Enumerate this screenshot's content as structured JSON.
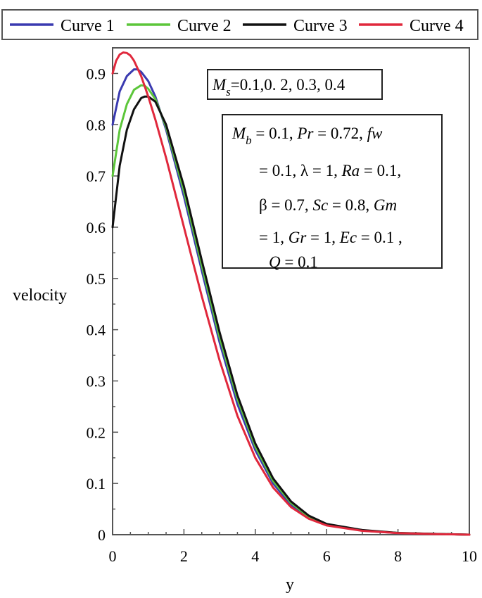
{
  "chart_data": {
    "type": "line",
    "xlabel": "y",
    "ylabel": "velocity",
    "xlim": [
      0,
      10
    ],
    "ylim": [
      0,
      0.95
    ],
    "xticks": [
      0,
      2,
      4,
      6,
      8,
      10
    ],
    "yticks": [
      0,
      0.1,
      0.2,
      0.3,
      0.4,
      0.5,
      0.6,
      0.7,
      0.8,
      0.9
    ],
    "xtick_labels": [
      "0",
      "2",
      "4",
      "6",
      "8",
      "10"
    ],
    "ytick_labels": [
      "0",
      "0.1",
      "0.2",
      "0.3",
      "0.4",
      "0.5",
      "0.6",
      "0.7",
      "0.8",
      "0.9"
    ],
    "grid": false,
    "legend_position": "top",
    "series": [
      {
        "name": "Curve 1",
        "color": "#3a3ab0",
        "x": [
          0,
          0.2,
          0.4,
          0.6,
          0.7,
          0.8,
          1.0,
          1.2,
          1.5,
          2.0,
          2.5,
          3.0,
          3.5,
          4.0,
          4.5,
          5.0,
          5.5,
          6.0,
          7.0,
          8.0,
          9.0,
          10.0
        ],
        "y": [
          0.8,
          0.865,
          0.895,
          0.908,
          0.908,
          0.903,
          0.885,
          0.855,
          0.79,
          0.66,
          0.515,
          0.375,
          0.255,
          0.165,
          0.1,
          0.058,
          0.033,
          0.019,
          0.008,
          0.003,
          0.0015,
          0.0
        ]
      },
      {
        "name": "Curve 2",
        "color": "#5cc63a",
        "x": [
          0,
          0.2,
          0.4,
          0.6,
          0.8,
          0.9,
          1.0,
          1.2,
          1.5,
          2.0,
          2.5,
          3.0,
          3.5,
          4.0,
          4.5,
          5.0,
          5.5,
          6.0,
          7.0,
          8.0,
          9.0,
          10.0
        ],
        "y": [
          0.7,
          0.79,
          0.84,
          0.868,
          0.877,
          0.876,
          0.87,
          0.85,
          0.795,
          0.67,
          0.525,
          0.385,
          0.265,
          0.172,
          0.105,
          0.062,
          0.035,
          0.02,
          0.0085,
          0.0035,
          0.0015,
          0.0
        ]
      },
      {
        "name": "Curve 3",
        "color": "#111111",
        "x": [
          0,
          0.2,
          0.4,
          0.6,
          0.8,
          0.9,
          1.0,
          1.2,
          1.5,
          2.0,
          2.5,
          3.0,
          3.5,
          4.0,
          4.5,
          5.0,
          5.5,
          6.0,
          7.0,
          8.0,
          9.0,
          10.0
        ],
        "y": [
          0.6,
          0.72,
          0.79,
          0.83,
          0.852,
          0.855,
          0.855,
          0.845,
          0.8,
          0.68,
          0.535,
          0.395,
          0.272,
          0.178,
          0.11,
          0.065,
          0.037,
          0.021,
          0.009,
          0.0035,
          0.0015,
          0.0
        ]
      },
      {
        "name": "Curve 4",
        "color": "#e0283c",
        "x": [
          0,
          0.1,
          0.2,
          0.3,
          0.4,
          0.5,
          0.6,
          0.8,
          1.0,
          1.2,
          1.5,
          2.0,
          2.5,
          3.0,
          3.5,
          4.0,
          4.5,
          5.0,
          5.5,
          6.0,
          7.0,
          8.0,
          9.0,
          10.0
        ],
        "y": [
          0.9,
          0.925,
          0.937,
          0.941,
          0.94,
          0.935,
          0.925,
          0.895,
          0.855,
          0.81,
          0.735,
          0.6,
          0.465,
          0.34,
          0.232,
          0.15,
          0.092,
          0.054,
          0.031,
          0.018,
          0.0075,
          0.003,
          0.0012,
          0.0
        ]
      }
    ],
    "annotations": {
      "ms_box": {
        "var": "M",
        "sub": "s",
        "text": "=0.1,0. 2, 0.3, 0.4"
      },
      "params_box": {
        "lines": [
          [
            {
              "t": "M",
              "i": true
            },
            {
              "t": "b",
              "i": true,
              "sub": true
            },
            {
              "t": " = 0.1, "
            },
            {
              "t": "Pr",
              "i": true
            },
            {
              "t": " = 0.72, "
            },
            {
              "t": "fw",
              "i": true
            }
          ],
          [
            {
              "t": "= 0.1, λ = 1, "
            },
            {
              "t": "Ra",
              "i": true
            },
            {
              "t": " = 0.1,"
            }
          ],
          [
            {
              "t": "β = 0.7, "
            },
            {
              "t": "Sc",
              "i": true
            },
            {
              "t": " = 0.8, "
            },
            {
              "t": "Gm",
              "i": true
            }
          ],
          [
            {
              "t": "= 1, "
            },
            {
              "t": "Gr",
              "i": true
            },
            {
              "t": " = 1, "
            },
            {
              "t": "Ec",
              "i": true
            },
            {
              "t": " = 0.1 ,"
            }
          ],
          [
            {
              "t": "Q",
              "i": true
            },
            {
              "t": " = 0.1"
            }
          ]
        ]
      }
    }
  }
}
